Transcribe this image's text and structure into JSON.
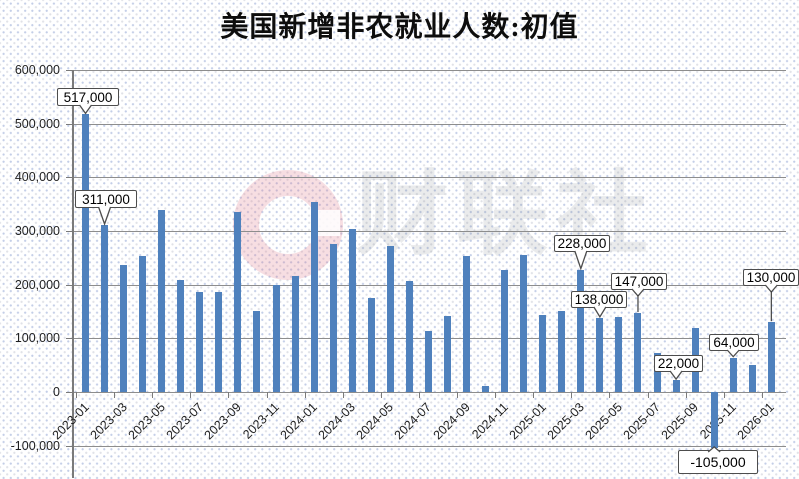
{
  "title": "美国新增非农就业人数:初值",
  "watermark": {
    "text": "财联社",
    "logo": "cailian-ring-logo",
    "logo_color": "#E17B8C"
  },
  "colors": {
    "bar": "#4F81BD",
    "grid": "#8D8D8D",
    "title_text": "#0D0D0D",
    "callout_border": "#4D4D4D"
  },
  "chart_data": {
    "type": "bar",
    "title": "美国新增非农就业人数:初值",
    "x": [
      "2023-01",
      "2023-02",
      "2023-03",
      "2023-04",
      "2023-05",
      "2023-06",
      "2023-07",
      "2023-08",
      "2023-09",
      "2023-10",
      "2023-11",
      "2023-12",
      "2024-01",
      "2024-02",
      "2024-03",
      "2024-04",
      "2024-05",
      "2024-06",
      "2024-07",
      "2024-08",
      "2024-09",
      "2024-10",
      "2024-11",
      "2024-12",
      "2025-01",
      "2025-02",
      "2025-03",
      "2025-04",
      "2025-05",
      "2025-06",
      "2025-07",
      "2025-08",
      "2025-09",
      "2025-10",
      "2025-11",
      "2025-12",
      "2026-01"
    ],
    "values": [
      517000,
      311000,
      236000,
      253000,
      339000,
      209000,
      187000,
      187000,
      336000,
      150000,
      199000,
      216000,
      353000,
      275000,
      303000,
      175000,
      272000,
      206000,
      114000,
      142000,
      254000,
      12000,
      227000,
      256000,
      143000,
      151000,
      228000,
      138000,
      139000,
      147000,
      73000,
      22000,
      119000,
      -105000,
      64000,
      50000,
      130000
    ],
    "bar_color": "#4F81BD",
    "ylim": [
      -100000,
      600000
    ],
    "ytick_interval": 100000,
    "ytick_labels": [
      "600,000",
      "500,000",
      "400,000",
      "300,000",
      "200,000",
      "100,000",
      "0",
      "-100,000"
    ],
    "xtick_interval": 2,
    "xtick_labels": [
      "2023-01",
      "2023-03",
      "2023-05",
      "2023-07",
      "2023-09",
      "2023-11",
      "2024-01",
      "2024-03",
      "2024-05",
      "2024-07",
      "2024-09",
      "2024-11",
      "2025-01",
      "2025-03",
      "2025-05",
      "2025-07",
      "2025-09",
      "2025-11",
      "2026-01"
    ],
    "grid": true,
    "legend": "none",
    "annotations": [
      {
        "x": "2023-01",
        "label": "517,000"
      },
      {
        "x": "2023-02",
        "label": "311,000"
      },
      {
        "x": "2025-03",
        "label": "228,000"
      },
      {
        "x": "2025-04",
        "label": "138,000"
      },
      {
        "x": "2025-06",
        "label": "147,000"
      },
      {
        "x": "2025-08",
        "label": "22,000"
      },
      {
        "x": "2025-10",
        "label": "-105,000"
      },
      {
        "x": "2025-11",
        "label": "64,000"
      },
      {
        "x": "2026-01",
        "label": "130,000"
      }
    ]
  }
}
